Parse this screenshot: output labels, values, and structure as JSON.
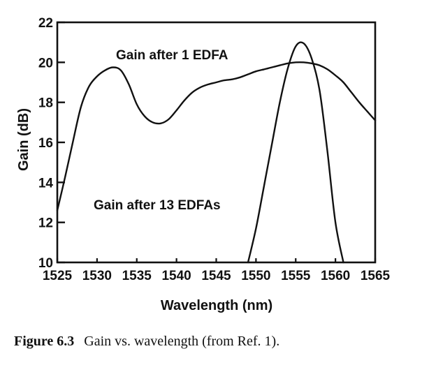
{
  "chart_data": {
    "type": "line",
    "xlabel": "Wavelength (nm)",
    "ylabel": "Gain (dB)",
    "xlim": [
      1525,
      1565
    ],
    "ylim": [
      10,
      22
    ],
    "x_ticks": [
      1525,
      1530,
      1535,
      1540,
      1545,
      1550,
      1555,
      1560,
      1565
    ],
    "y_ticks": [
      10,
      12,
      14,
      16,
      18,
      20,
      22
    ],
    "grid": false,
    "annotations": [
      "Gain after 1 EDFA",
      "Gain after 13 EDFAs"
    ],
    "series": [
      {
        "x": [
          1525,
          1526,
          1527,
          1528,
          1529,
          1530,
          1531,
          1532,
          1533,
          1534,
          1535,
          1536,
          1537,
          1538,
          1539,
          1540,
          1541,
          1542,
          1543,
          1544,
          1545,
          1546,
          1547,
          1548,
          1549,
          1550,
          1551,
          1552,
          1553,
          1554,
          1555,
          1556,
          1557,
          1558,
          1559,
          1560,
          1561,
          1562,
          1563,
          1564,
          1565
        ],
        "values": [
          12.6,
          14.3,
          16.1,
          17.8,
          18.8,
          19.3,
          19.6,
          19.75,
          19.6,
          18.9,
          17.9,
          17.3,
          17.0,
          16.95,
          17.15,
          17.6,
          18.1,
          18.5,
          18.75,
          18.9,
          19.0,
          19.1,
          19.15,
          19.25,
          19.4,
          19.55,
          19.65,
          19.75,
          19.85,
          19.95,
          20.0,
          20.0,
          19.95,
          19.85,
          19.65,
          19.35,
          19.0,
          18.5,
          18.0,
          17.55,
          17.1
        ]
      },
      {
        "x": [
          1549,
          1550,
          1551,
          1552,
          1553,
          1554,
          1555,
          1556,
          1557,
          1558,
          1559,
          1560,
          1561
        ],
        "values": [
          10.0,
          11.7,
          13.8,
          15.9,
          18.0,
          19.7,
          20.8,
          20.95,
          20.2,
          18.6,
          15.5,
          12.0,
          10.0
        ]
      }
    ]
  },
  "caption": {
    "label": "Figure 6.3",
    "text": "Gain vs. wavelength (from Ref. 1)."
  }
}
